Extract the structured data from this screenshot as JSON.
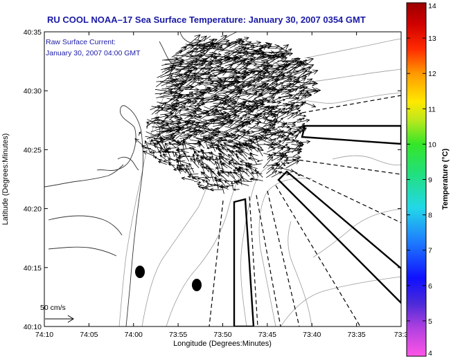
{
  "chart_data": {
    "type": "map",
    "title": "RU COOL  NOAA–17  Sea Surface Temperature:  January 30, 2007 0354 GMT",
    "xlabel": "Longitude (Degrees:Minutes)",
    "ylabel": "Latitude (Degrees:Minutes)",
    "x_ticks": [
      "74:10",
      "74:05",
      "74:00",
      "73:55",
      "73:50",
      "73:45",
      "73:40",
      "73:35",
      "73:3"
    ],
    "y_ticks": [
      "40:35",
      "40:30",
      "40:25",
      "40:20",
      "40:15",
      "40:10"
    ],
    "annotation": {
      "line1": "Raw Surface Current:",
      "line2": "January 30, 2007 04:00 GMT"
    },
    "scale_label": "50 cm/s",
    "colorbar": {
      "label": "Temperature (°C)",
      "min": 4,
      "max": 14,
      "ticks": [
        "14",
        "13",
        "12",
        "11",
        "10",
        "9",
        "8",
        "7",
        "6",
        "5",
        "4"
      ]
    },
    "grid": false
  }
}
